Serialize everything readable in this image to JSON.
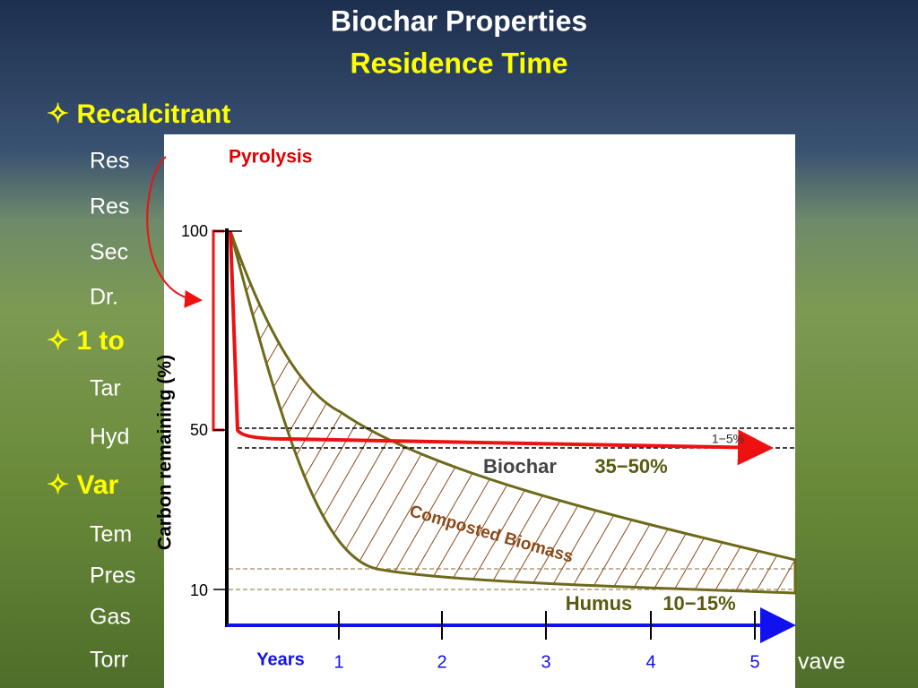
{
  "header": {
    "title": "Biochar Properties",
    "subtitle": "Residence Time"
  },
  "bullets": [
    {
      "text": "✧ Recalcitrant",
      "items": [
        "Res",
        "Res",
        "Sec",
        "Dr."
      ]
    },
    {
      "text": "✧ 1 to",
      "items": [
        "Tar",
        "Hyd"
      ]
    },
    {
      "text": "✧ Var",
      "items": [
        "Tem",
        "Pres",
        "Gas",
        "Torr"
      ]
    }
  ],
  "trailing_text": "vave",
  "chart": {
    "pyrolysis": "Pyrolysis",
    "y_label": "Carbon remaining (%)",
    "y_ticks": [
      "100",
      "50",
      "10"
    ],
    "x_label": "Years",
    "x_ticks": [
      "1",
      "2",
      "3",
      "4",
      "5"
    ],
    "range_label": "1−5%",
    "biochar": "Biochar",
    "biochar_range": "35−50%",
    "composted": "Composted Biomass",
    "humus": "Humus",
    "humus_range": "10−15%"
  }
}
